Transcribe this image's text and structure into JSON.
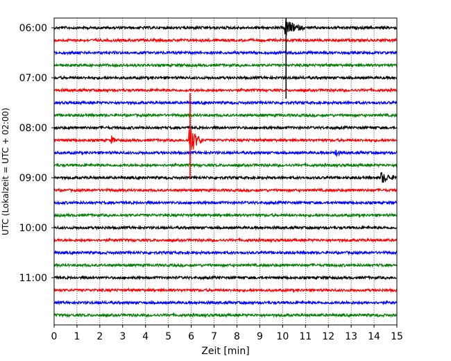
{
  "chart_data": {
    "type": "line",
    "title": "",
    "xlabel": "Zeit  [min]",
    "ylabel": "UTC (Lokalzeit = UTC + 02:00)",
    "xlim": [
      0,
      15
    ],
    "x_ticks": [
      0,
      1,
      2,
      3,
      4,
      5,
      6,
      7,
      8,
      9,
      10,
      11,
      12,
      13,
      14,
      15
    ],
    "y_tick_labels": [
      "06:00",
      "07:00",
      "08:00",
      "09:00",
      "10:00",
      "11:00"
    ],
    "grid": "vertical dotted at each minute",
    "trace_interval_min": 15,
    "trace_start": "06:00",
    "trace_count": 24,
    "trace_colors": [
      "#000000",
      "#ff0000",
      "#0000ff",
      "#008000"
    ],
    "events": [
      {
        "trace_start": "06:00",
        "minute_start": 10.1,
        "duration_min": 0.9,
        "color": "#000000",
        "note": "large signal extending into following traces"
      },
      {
        "trace_start": "08:15",
        "minute_start": 5.9,
        "duration_min": 0.6,
        "color": "#ff0000",
        "note": "large signal"
      },
      {
        "trace_start": "08:15",
        "minute_start": 2.5,
        "duration_min": 0.3,
        "color": "#ff0000",
        "note": "small signal"
      },
      {
        "trace_start": "08:30",
        "minute_start": 12.3,
        "duration_min": 0.3,
        "color": "#0000ff",
        "note": "small signal"
      },
      {
        "trace_start": "09:00",
        "minute_start": 14.3,
        "duration_min": 0.7,
        "color": "#000000",
        "note": "moderate signal"
      }
    ]
  }
}
